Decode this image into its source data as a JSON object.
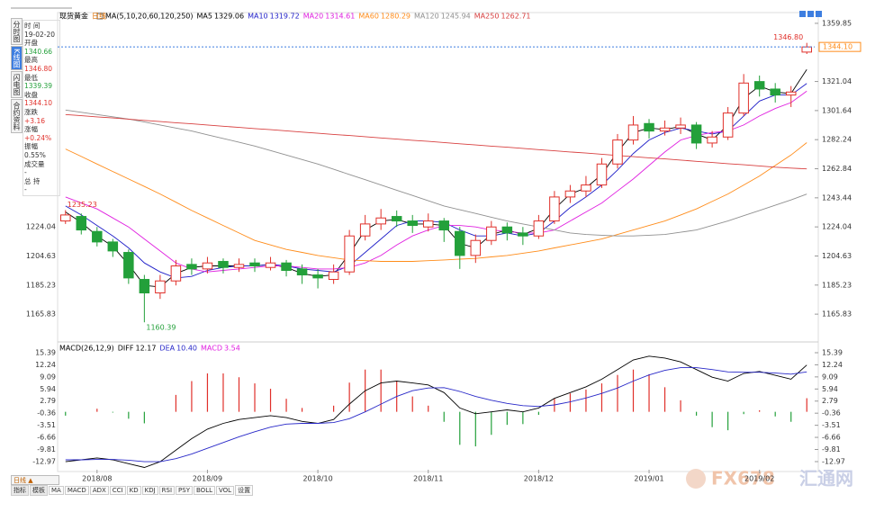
{
  "sidebar": {
    "tabs": [
      "分时图",
      "K线图",
      "闪电图",
      "合约资料"
    ]
  },
  "info_panel": {
    "rows": [
      {
        "label": "时 间",
        "value": "19-02-20",
        "tone": "plain"
      },
      {
        "label": "开盘",
        "value": "1340.66",
        "tone": "down"
      },
      {
        "label": "最高",
        "value": "1346.80",
        "tone": "up"
      },
      {
        "label": "最低",
        "value": "1339.39",
        "tone": "down"
      },
      {
        "label": "收盘",
        "value": "1344.10",
        "tone": "up"
      },
      {
        "label": "涨跌",
        "value": "+3.16",
        "tone": "up"
      },
      {
        "label": "涨幅",
        "value": "+0.24%",
        "tone": "up"
      },
      {
        "label": "振幅",
        "value": "0.55%",
        "tone": "plain"
      },
      {
        "label": "成交量",
        "value": "-",
        "tone": "plain"
      },
      {
        "label": "总 持",
        "value": "-",
        "tone": "plain"
      }
    ]
  },
  "toolbar": {
    "period": "日线 ▲",
    "tabs": [
      "指标",
      "模板"
    ],
    "indicators": [
      "MA",
      "MACD",
      "ADX",
      "CCI",
      "KD",
      "KDJ",
      "RSI",
      "PSY",
      "BOLL",
      "VOL",
      "设置"
    ]
  },
  "watermark": {
    "brand": "FX678",
    "name": "汇通网"
  },
  "chart_data": [
    {
      "type": "candlestick",
      "title": "现货黄金",
      "period": "日线",
      "indicator": "MA(5,10,20,60,120,250)",
      "categories": [
        null,
        null,
        "2018/08",
        null,
        null,
        null,
        null,
        null,
        null,
        "2018/09",
        null,
        null,
        null,
        null,
        null,
        null,
        "2018/10",
        null,
        null,
        null,
        null,
        null,
        null,
        "2018/11",
        null,
        null,
        null,
        null,
        null,
        null,
        "2018/12",
        null,
        null,
        null,
        null,
        null,
        null,
        "2019/01",
        null,
        null,
        null,
        null,
        null,
        null,
        "2019/02",
        null,
        null,
        null
      ],
      "open": [
        1228,
        1231,
        1221,
        1214,
        1207,
        1189,
        1180,
        1188,
        1199,
        1196,
        1201,
        1197,
        1200,
        1197,
        1200,
        1196,
        1192,
        1189,
        1194,
        1218,
        1226,
        1231,
        1228,
        1224,
        1228,
        1221,
        1205,
        1215,
        1224,
        1220,
        1218,
        1228,
        1244,
        1248,
        1252,
        1266,
        1282,
        1293,
        1288,
        1290,
        1292,
        1280,
        1284,
        1300,
        1321,
        1316,
        1312,
        1340.66
      ],
      "high": [
        1235.23,
        1233,
        1224,
        1216,
        1209,
        1192,
        1192,
        1202,
        1203,
        1204,
        1203,
        1203,
        1203,
        1204,
        1202,
        1199,
        1196,
        1199,
        1222,
        1232,
        1236,
        1235,
        1232,
        1233,
        1230,
        1224,
        1219,
        1228,
        1227,
        1224,
        1232,
        1248,
        1252,
        1258,
        1270,
        1286,
        1298,
        1296,
        1295,
        1297,
        1294,
        1288,
        1304,
        1326,
        1325,
        1320,
        1318,
        1346.8
      ],
      "low": [
        1226,
        1219,
        1211,
        1204,
        1186,
        1160.39,
        1176,
        1185,
        1192,
        1193,
        1193,
        1194,
        1194,
        1195,
        1191,
        1186,
        1183,
        1186,
        1192,
        1215,
        1222,
        1224,
        1220,
        1221,
        1214,
        1196,
        1200,
        1212,
        1215,
        1212,
        1216,
        1226,
        1240,
        1244,
        1250,
        1263,
        1279,
        1283,
        1285,
        1286,
        1276,
        1277,
        1282,
        1298,
        1311,
        1307,
        1304,
        1339.39
      ],
      "close": [
        1232,
        1222,
        1214,
        1208,
        1190,
        1180,
        1188,
        1198,
        1196,
        1200,
        1197,
        1199,
        1198,
        1200,
        1195,
        1192,
        1190,
        1194,
        1218,
        1226,
        1230,
        1228,
        1225,
        1228,
        1222,
        1205,
        1215,
        1224,
        1220,
        1218,
        1228,
        1244,
        1248,
        1252,
        1266,
        1282,
        1292,
        1288,
        1290,
        1292,
        1280,
        1284,
        1300,
        1320,
        1316,
        1312,
        1314,
        1344.1
      ],
      "up_color": "#e0302a",
      "down_color": "#23a03a",
      "series": [
        {
          "name": "MA5",
          "color": "#000000",
          "values": [
            1234,
            1227,
            1218,
            1211,
            1199,
            1185,
            1184,
            1193,
            1197,
            1198,
            1198,
            1198,
            1198,
            1199,
            1197,
            1193,
            1191,
            1192,
            1206,
            1222,
            1228,
            1229,
            1226,
            1226,
            1225,
            1213,
            1210,
            1219,
            1222,
            1219,
            1223,
            1236,
            1246,
            1250,
            1259,
            1274,
            1287,
            1290,
            1289,
            1291,
            1286,
            1282,
            1292,
            1310,
            1318,
            1314,
            1313,
            1329.06
          ]
        },
        {
          "name": "MA10",
          "color": "#1e1ec8",
          "values": [
            1238,
            1232,
            1225,
            1218,
            1210,
            1200,
            1194,
            1190,
            1191,
            1195,
            1197,
            1198,
            1198,
            1199,
            1198,
            1196,
            1195,
            1194,
            1198,
            1207,
            1216,
            1225,
            1228,
            1228,
            1227,
            1222,
            1218,
            1218,
            1220,
            1218,
            1220,
            1228,
            1237,
            1244,
            1252,
            1262,
            1273,
            1282,
            1287,
            1290,
            1288,
            1286,
            1288,
            1298,
            1308,
            1312,
            1312,
            1319.72
          ]
        },
        {
          "name": "MA20",
          "color": "#e020e0",
          "values": [
            1244,
            1240,
            1236,
            1230,
            1224,
            1216,
            1208,
            1200,
            1196,
            1194,
            1195,
            1196,
            1197,
            1198,
            1198,
            1197,
            1196,
            1196,
            1197,
            1200,
            1205,
            1212,
            1218,
            1222,
            1225,
            1225,
            1224,
            1222,
            1221,
            1220,
            1220,
            1222,
            1228,
            1234,
            1240,
            1248,
            1256,
            1265,
            1274,
            1282,
            1285,
            1287,
            1288,
            1292,
            1298,
            1303,
            1307,
            1314.61
          ]
        },
        {
          "name": "MA60",
          "color": "#ff8c1a",
          "values": [
            1276,
            1271,
            1266,
            1261,
            1256,
            1251,
            1246,
            1240.5,
            1235,
            1230,
            1225,
            1220,
            1215,
            1212,
            1209,
            1207,
            1205,
            1203.5,
            1202,
            1201.5,
            1201,
            1201,
            1201,
            1201.5,
            1202,
            1202.5,
            1203,
            1204,
            1205,
            1206.5,
            1208,
            1210,
            1212,
            1214,
            1216,
            1219,
            1222,
            1225,
            1228,
            1232,
            1236,
            1241,
            1246,
            1252,
            1258,
            1265,
            1272,
            1280.29
          ]
        },
        {
          "name": "MA120",
          "color": "#909090",
          "values": [
            1302,
            1300.5,
            1299,
            1297.5,
            1296,
            1294,
            1292,
            1290,
            1288,
            1285.5,
            1283,
            1280.5,
            1278,
            1275,
            1272,
            1269,
            1266,
            1262.5,
            1259,
            1255.5,
            1252,
            1248.5,
            1245,
            1241.5,
            1238,
            1235.5,
            1233,
            1230.5,
            1228,
            1226,
            1224,
            1222,
            1220,
            1219,
            1218.5,
            1218,
            1218,
            1218.5,
            1219,
            1220.5,
            1222,
            1225,
            1228,
            1231.5,
            1235,
            1238.5,
            1242,
            1245.94
          ]
        },
        {
          "name": "MA250",
          "color": "#d84040",
          "values": [
            1299,
            1298.2,
            1297.4,
            1296.7,
            1295.9,
            1295.1,
            1294.3,
            1293.5,
            1292.8,
            1292,
            1291.2,
            1290.4,
            1289.6,
            1288.9,
            1288.1,
            1287.3,
            1286.5,
            1285.7,
            1285,
            1284.2,
            1283.4,
            1282.6,
            1281.8,
            1281.1,
            1280.3,
            1279.5,
            1278.7,
            1277.9,
            1277.2,
            1276.4,
            1275.6,
            1274.8,
            1274,
            1273.3,
            1272.5,
            1271.7,
            1270.9,
            1270.1,
            1269.4,
            1268.6,
            1267.8,
            1267,
            1266.2,
            1265.5,
            1264.7,
            1263.9,
            1263.3,
            1262.71
          ]
        }
      ],
      "ylim": [
        1150.3,
        1363.4
      ],
      "yticks": [
        1165.83,
        1185.23,
        1204.63,
        1224.04,
        1243.44,
        1262.84,
        1282.24,
        1301.64,
        1321.04,
        1359.85
      ],
      "last_price": {
        "value": 1344.1,
        "label": "1344.10"
      },
      "annotations": [
        {
          "value": 1346.8,
          "label": "1346.80"
        },
        {
          "value": 1235.23,
          "label": "1235.23"
        },
        {
          "value": 1160.39,
          "label": "1160.39"
        }
      ]
    },
    {
      "type": "macd",
      "title": "MACD(26,12,9)",
      "series": [
        {
          "name": "DIFF",
          "color": "#000000",
          "values": [
            -13,
            -12.5,
            -12,
            -12.5,
            -13.5,
            -14.5,
            -13,
            -10,
            -7,
            -4.5,
            -3,
            -2,
            -1.5,
            -1,
            -1.5,
            -2.5,
            -3,
            -2,
            2,
            5.5,
            7.5,
            8,
            7.5,
            7,
            5,
            1,
            -0.5,
            0,
            0.5,
            0,
            1,
            3.5,
            5,
            6.5,
            8.5,
            11,
            13.5,
            14.5,
            14,
            13,
            11,
            9,
            8,
            10,
            10.5,
            9.5,
            8.5,
            12.17
          ]
        },
        {
          "name": "DEA",
          "color": "#2828c8",
          "values": [
            -12.5,
            -12.5,
            -12.4,
            -12.4,
            -12.6,
            -13,
            -13,
            -12.2,
            -11,
            -9.5,
            -8,
            -6.5,
            -5.2,
            -4,
            -3.2,
            -3,
            -3,
            -2.8,
            -1.8,
            0,
            2,
            4,
            5.5,
            6.2,
            6.3,
            5.3,
            4,
            3,
            2.2,
            1.6,
            1.4,
            1.8,
            2.6,
            3.6,
            4.8,
            6.2,
            8,
            9.6,
            10.8,
            11.5,
            11.5,
            11,
            10.4,
            10.3,
            10.3,
            10.1,
            9.8,
            10.4
          ],
          "value_labels": [
            null,
            null,
            null,
            null,
            null,
            null,
            null,
            null,
            null,
            null,
            null,
            null,
            null,
            null,
            null,
            null,
            null,
            null,
            null,
            null,
            null,
            null,
            null,
            null,
            null,
            null,
            null,
            null,
            null,
            null,
            null,
            null,
            null,
            null,
            null,
            null,
            null,
            null,
            null,
            null,
            null,
            null,
            null,
            null,
            null,
            null,
            null,
            "10.40"
          ]
        },
        {
          "name": "MACD",
          "color": "#e020e0",
          "values": [
            -1,
            0,
            0.8,
            -0.2,
            -1.8,
            -3,
            0,
            4.4,
            8,
            10,
            10,
            9,
            7.4,
            6,
            3.4,
            1,
            0,
            1.6,
            7.6,
            11,
            11,
            8,
            4,
            1.6,
            -2.6,
            -8.6,
            -9,
            -6,
            -3.4,
            -3.2,
            -0.8,
            3.4,
            4.8,
            5.8,
            7.4,
            9.6,
            11,
            9.8,
            6.4,
            3,
            -1,
            -4,
            -4.8,
            -0.6,
            0.4,
            -1.2,
            -2.6,
            3.54
          ]
        }
      ],
      "up_color": "#e0302a",
      "down_color": "#23a03a",
      "ylim": [
        -15.08,
        17.26
      ],
      "yticks": [
        15.39,
        12.24,
        9.09,
        5.94,
        2.79,
        -0.36,
        -3.51,
        -6.66,
        -9.81,
        -12.97
      ]
    }
  ]
}
